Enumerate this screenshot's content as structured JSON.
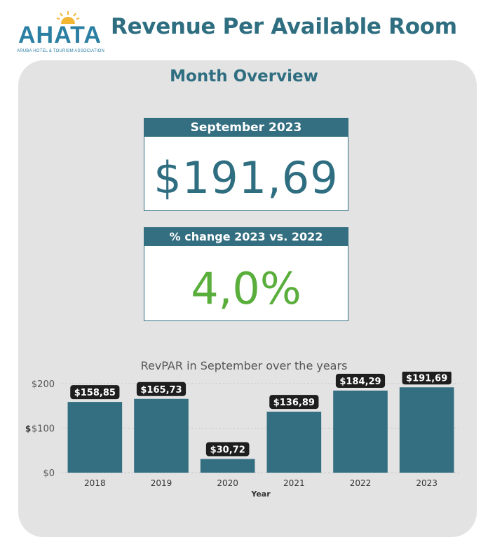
{
  "logo": {
    "text": "AHATA",
    "subtitle": "ARUBA HOTEL & TOURISM ASSOCIATION",
    "icon": "sun-icon",
    "color": "#2a7fa3"
  },
  "header": {
    "title": "Revenue Per Available Room"
  },
  "overview": {
    "title": "Month Overview"
  },
  "kpi_month": {
    "label": "September 2023",
    "value": "$191,69"
  },
  "kpi_change": {
    "label": "% change 2023 vs. 2022",
    "value": "4,0%"
  },
  "colors": {
    "accent": "#346f81",
    "positive": "#5aae3c",
    "panel": "#e3e3e3"
  },
  "chart_data": {
    "type": "bar",
    "title": "RevPAR in September over the years",
    "xlabel": "Year",
    "ylabel": "$",
    "categories": [
      "2018",
      "2019",
      "2020",
      "2021",
      "2022",
      "2023"
    ],
    "values": [
      158.85,
      165.73,
      30.72,
      136.89,
      184.29,
      191.69
    ],
    "data_labels": [
      "$158,85",
      "$165,73",
      "$30,72",
      "$136,89",
      "$184,29",
      "$191,69"
    ],
    "yticks": [
      0,
      100,
      200
    ],
    "ytick_labels": [
      "$0",
      "$100",
      "$200"
    ],
    "ylim": [
      0,
      200
    ],
    "grid": true,
    "bar_color": "#346f81"
  }
}
